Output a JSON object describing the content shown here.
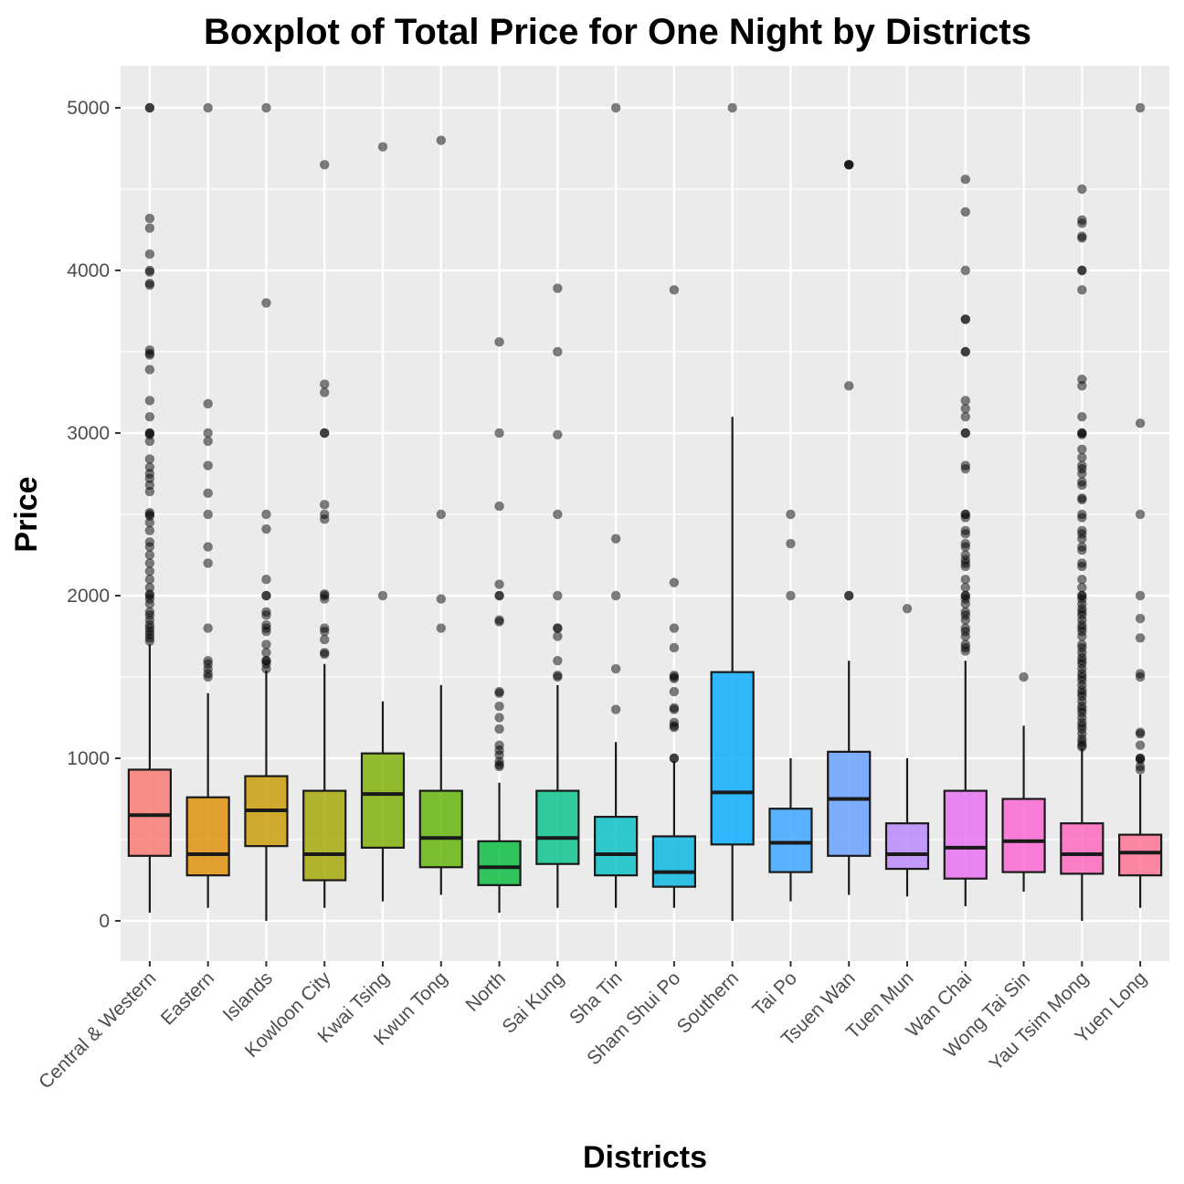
{
  "chart_data": {
    "type": "boxplot",
    "title": "Boxplot of Total Price for One Night by Districts",
    "xlabel": "Districts",
    "ylabel": "Price",
    "ylim": [
      -250,
      5200
    ],
    "y_ticks": [
      0,
      1000,
      2000,
      3000,
      4000,
      5000
    ],
    "grid": true,
    "legend": "none",
    "categories": [
      "Central & Western",
      "Eastern",
      "Islands",
      "Kowloon City",
      "Kwai Tsing",
      "Kwun Tong",
      "North",
      "Sai Kung",
      "Sha Tin",
      "Sham Shui Po",
      "Southern",
      "Tai Po",
      "Tsuen Wan",
      "Tuen Mun",
      "Wan Chai",
      "Wong Tai Sin",
      "Yau Tsim Mong",
      "Yuen Long"
    ],
    "colors": [
      "#F8766D",
      "#E58700",
      "#C99800",
      "#A3A500",
      "#6BB100",
      "#00BA38",
      "#00BF7D",
      "#00C0AF",
      "#00BCD8",
      "#00B0F6",
      "#619CFF",
      "#B983FF",
      "#E76BF3",
      "#FD61D1",
      "#FF67A4",
      "#F8766D",
      "#E7861B",
      "#FF67A4"
    ],
    "box_colors": [
      "#F8766D",
      "#DE8C00",
      "#C99800",
      "#A3A500",
      "#7CAE00",
      "#5BB300",
      "#00BA38",
      "#00C08B",
      "#00BFC4",
      "#00B4E0",
      "#00A9FF",
      "#35A2FF",
      "#619CFF",
      "#B983FF",
      "#E76BF3",
      "#FD61D1",
      "#FF62BC",
      "#FF6C91"
    ],
    "boxes": [
      {
        "whisker_low": 50,
        "q1": 400,
        "median": 650,
        "q3": 930,
        "whisker_high": 1700,
        "outliers": [
          5000,
          5000,
          4320,
          4260,
          4100,
          4000,
          3990,
          3920,
          3910,
          3510,
          3490,
          3480,
          3390,
          3200,
          3100,
          3000,
          3000,
          2990,
          2950,
          2840,
          2790,
          2750,
          2720,
          2680,
          2640,
          2510,
          2500,
          2490,
          2450,
          2400,
          2330,
          2300,
          2250,
          2200,
          2150,
          2100,
          2050,
          2010,
          2000,
          1980,
          1950,
          1900,
          1880,
          1850,
          1820,
          1800,
          1780,
          1760,
          1740,
          1720
        ]
      },
      {
        "whisker_low": 80,
        "q1": 280,
        "median": 410,
        "q3": 760,
        "whisker_high": 1400,
        "outliers": [
          5000,
          3180,
          3000,
          2950,
          2800,
          2630,
          2500,
          2300,
          2200,
          1800,
          1600,
          1580,
          1550,
          1520,
          1500
        ]
      },
      {
        "whisker_low": 0,
        "q1": 460,
        "median": 680,
        "q3": 890,
        "whisker_high": 1540,
        "outliers": [
          5000,
          3800,
          2500,
          2410,
          2100,
          2000,
          2000,
          1900,
          1880,
          1820,
          1800,
          1780,
          1700,
          1650,
          1600,
          1600,
          1580,
          1550
        ]
      },
      {
        "whisker_low": 80,
        "q1": 250,
        "median": 410,
        "q3": 800,
        "whisker_high": 1580,
        "outliers": [
          4650,
          3300,
          3250,
          3000,
          3000,
          2560,
          2500,
          2470,
          2010,
          2000,
          1980,
          1800,
          1780,
          1730,
          1650,
          1640
        ]
      },
      {
        "whisker_low": 120,
        "q1": 450,
        "median": 780,
        "q3": 1030,
        "whisker_high": 1350,
        "outliers": [
          4760,
          2000
        ]
      },
      {
        "whisker_low": 160,
        "q1": 330,
        "median": 510,
        "q3": 800,
        "whisker_high": 1450,
        "outliers": [
          4800,
          2500,
          1980,
          1800
        ]
      },
      {
        "whisker_low": 50,
        "q1": 220,
        "median": 330,
        "q3": 490,
        "whisker_high": 850,
        "outliers": [
          3560,
          3000,
          2550,
          2070,
          2000,
          2000,
          1850,
          1840,
          1410,
          1400,
          1320,
          1250,
          1180,
          1080,
          1050,
          1020,
          980,
          960,
          950
        ]
      },
      {
        "whisker_low": 80,
        "q1": 350,
        "median": 510,
        "q3": 800,
        "whisker_high": 1450,
        "outliers": [
          3890,
          3500,
          2990,
          2500,
          2000,
          1800,
          1800,
          1750,
          1600,
          1510,
          1500
        ]
      },
      {
        "whisker_low": 80,
        "q1": 280,
        "median": 410,
        "q3": 640,
        "whisker_high": 1100,
        "outliers": [
          5000,
          2350,
          2000,
          1550,
          1300
        ]
      },
      {
        "whisker_low": 80,
        "q1": 210,
        "median": 300,
        "q3": 520,
        "whisker_high": 980,
        "outliers": [
          3880,
          2080,
          1800,
          1680,
          1510,
          1500,
          1490,
          1410,
          1310,
          1300,
          1220,
          1200,
          1190,
          1000,
          1000
        ]
      },
      {
        "whisker_low": 0,
        "q1": 470,
        "median": 790,
        "q3": 1530,
        "whisker_high": 3100,
        "outliers": [
          5000
        ]
      },
      {
        "whisker_low": 120,
        "q1": 300,
        "median": 480,
        "q3": 690,
        "whisker_high": 1000,
        "outliers": [
          2500,
          2320,
          2000
        ]
      },
      {
        "whisker_low": 160,
        "q1": 400,
        "median": 750,
        "q3": 1040,
        "whisker_high": 1600,
        "outliers": [
          4650,
          4650,
          4650,
          3290,
          2000,
          2000
        ]
      },
      {
        "whisker_low": 150,
        "q1": 320,
        "median": 410,
        "q3": 600,
        "whisker_high": 1000,
        "outliers": [
          1920
        ]
      },
      {
        "whisker_low": 90,
        "q1": 260,
        "median": 450,
        "q3": 800,
        "whisker_high": 1600,
        "outliers": [
          4560,
          4360,
          4000,
          3700,
          3700,
          3500,
          3500,
          3200,
          3150,
          3100,
          3000,
          3000,
          2800,
          2780,
          2500,
          2500,
          2480,
          2400,
          2380,
          2320,
          2300,
          2250,
          2220,
          2200,
          2180,
          2100,
          2050,
          2000,
          2000,
          1980,
          1950,
          1900,
          1880,
          1850,
          1800,
          1780,
          1750,
          1700,
          1680,
          1660
        ]
      },
      {
        "whisker_low": 180,
        "q1": 300,
        "median": 490,
        "q3": 750,
        "whisker_high": 1200,
        "outliers": [
          1500
        ]
      },
      {
        "whisker_low": 0,
        "q1": 290,
        "median": 410,
        "q3": 600,
        "whisker_high": 1060,
        "outliers": [
          4500,
          4310,
          4290,
          4210,
          4200,
          4000,
          4000,
          3880,
          3330,
          3290,
          3100,
          3000,
          3000,
          2990,
          2900,
          2850,
          2800,
          2780,
          2750,
          2700,
          2680,
          2600,
          2590,
          2500,
          2480,
          2400,
          2380,
          2350,
          2300,
          2280,
          2200,
          2180,
          2100,
          2050,
          2000,
          2000,
          1980,
          1950,
          1920,
          1900,
          1880,
          1850,
          1820,
          1800,
          1780,
          1750,
          1700,
          1680,
          1650,
          1620,
          1600,
          1580,
          1550,
          1520,
          1500,
          1480,
          1450,
          1420,
          1400,
          1380,
          1350,
          1320,
          1300,
          1280,
          1250,
          1220,
          1200,
          1180,
          1150,
          1120,
          1100,
          1080,
          1070
        ]
      },
      {
        "whisker_low": 80,
        "q1": 280,
        "median": 420,
        "q3": 530,
        "whisker_high": 900,
        "outliers": [
          5000,
          3060,
          2500,
          2000,
          1860,
          1740,
          1520,
          1500,
          1160,
          1150,
          1080,
          1000,
          1000,
          990,
          950,
          930
        ]
      }
    ]
  }
}
